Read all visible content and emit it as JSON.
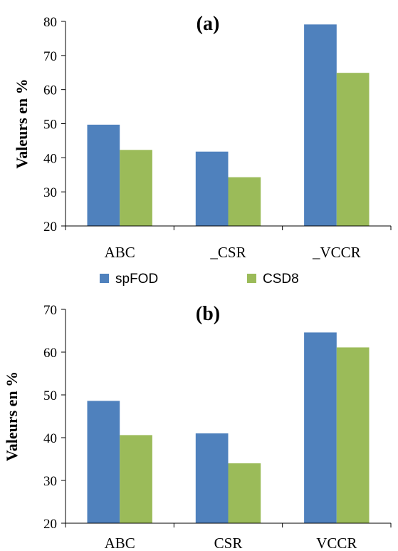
{
  "chart_data": [
    {
      "type": "bar",
      "title": "(a)",
      "ylabel": "Valeurs en %",
      "xlabel": "",
      "categories": [
        "ABC",
        "_CSR",
        "_VCCR"
      ],
      "series": [
        {
          "name": "spFOD",
          "values": [
            49.7,
            41.8,
            79.1
          ]
        },
        {
          "name": "CSD8",
          "values": [
            42.3,
            34.3,
            64.9
          ]
        }
      ],
      "ylim": [
        20,
        80
      ],
      "yticks": [
        "20",
        "30",
        "40",
        "50",
        "60",
        "70",
        "80"
      ],
      "grid": false,
      "legend": "bottom"
    },
    {
      "type": "bar",
      "title": "(b)",
      "ylabel": "Valeurs en %",
      "xlabel": "",
      "categories": [
        "ABC",
        "CSR",
        "VCCR"
      ],
      "series": [
        {
          "name": "spFOD",
          "values": [
            48.6,
            41.0,
            64.6
          ]
        },
        {
          "name": "CSD8",
          "values": [
            40.6,
            34.0,
            61.1
          ]
        }
      ],
      "ylim": [
        20,
        70
      ],
      "yticks": [
        "20",
        "30",
        "40",
        "50",
        "60",
        "70"
      ],
      "grid": false,
      "legend": "none"
    }
  ],
  "legend": {
    "items": [
      {
        "label": "spFOD",
        "color": "#4F81BD"
      },
      {
        "label": "CSD8",
        "color": "#9BBB59"
      }
    ]
  },
  "colors": {
    "spFOD": "#4F81BD",
    "CSD8": "#9BBB59",
    "axis": "#000000"
  }
}
